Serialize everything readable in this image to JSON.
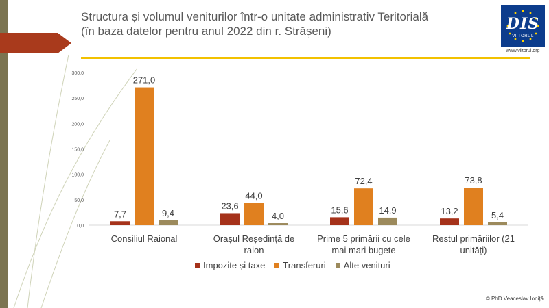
{
  "header": {
    "title_line1": "Structura și volumul veniturilor într-o unitate administrativ Teritorială",
    "title_line2": "(în baza datelor pentru anul 2022 din r. Strășeni)"
  },
  "logo": {
    "mark": "DIS",
    "subtitle": "VIITORUL",
    "url": "www.viitorul.org"
  },
  "footer": {
    "credit": "© PhD Veaceslav Ioniță"
  },
  "colors": {
    "accent_line": "#f2c100",
    "left_strip": "#7b7451",
    "arrow": "#a93a1c",
    "logo_bg": "#0c3c8c"
  },
  "chart_data": {
    "type": "bar",
    "categories": [
      [
        "Consiliul Raional"
      ],
      [
        "Orașul Reședință de",
        "raion"
      ],
      [
        "Prime 5 primării cu cele",
        "mai mari bugete"
      ],
      [
        "Restul primăriilor (21",
        "unități)"
      ]
    ],
    "series": [
      {
        "name": "Impozite și taxe",
        "color": "#a5321a",
        "values": [
          7.7,
          23.6,
          15.6,
          13.2
        ],
        "labels": [
          "7,7",
          "23,6",
          "15,6",
          "13,2"
        ]
      },
      {
        "name": "Transferuri",
        "color": "#e0801f",
        "values": [
          271.0,
          44.0,
          72.4,
          73.8
        ],
        "labels": [
          "271,0",
          "44,0",
          "72,4",
          "73,8"
        ]
      },
      {
        "name": "Alte venituri",
        "color": "#9c8a5c",
        "values": [
          9.4,
          4.0,
          14.9,
          5.4
        ],
        "labels": [
          "9,4",
          "4,0",
          "14,9",
          "5,4"
        ]
      }
    ],
    "yticks": [
      0,
      50,
      100,
      150,
      200,
      250,
      300
    ],
    "ytick_labels": [
      "0,0",
      "50,0",
      "100,0",
      "150,0",
      "200,0",
      "250,0",
      "300,0"
    ],
    "ylim": [
      0,
      300
    ],
    "grid": false,
    "legend_position": "bottom"
  }
}
